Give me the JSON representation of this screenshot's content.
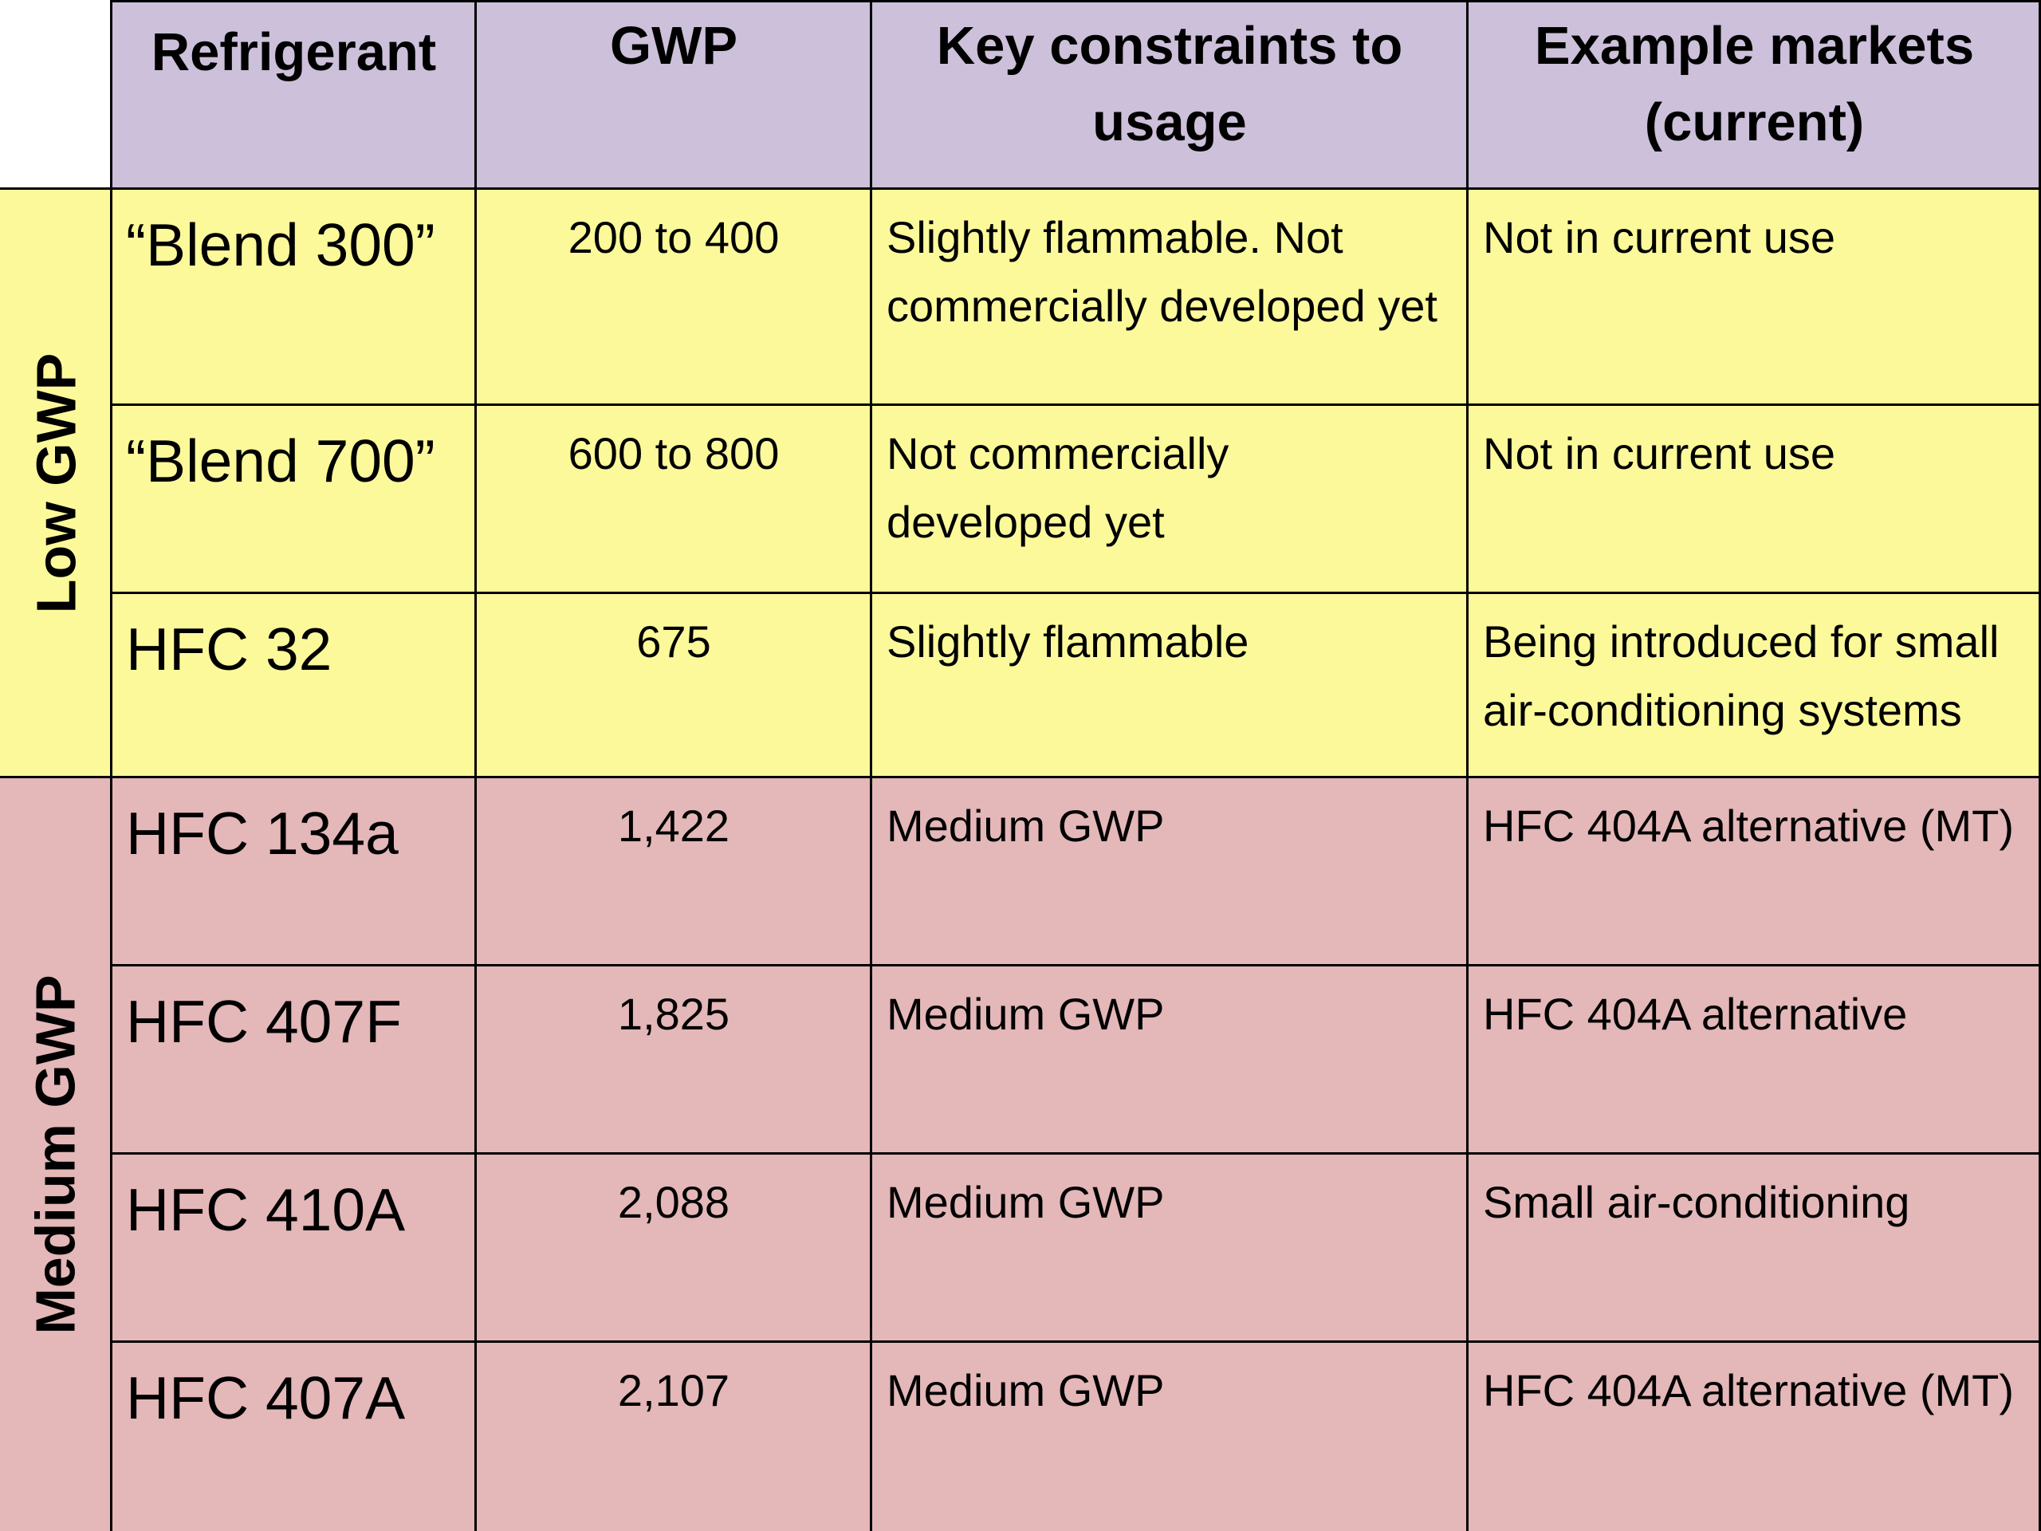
{
  "table": {
    "headers": {
      "refrigerant": "Refrigerant",
      "gwp": "GWP",
      "constraints_line1": "Key constraints to",
      "constraints_line2": "usage",
      "markets_line1": "Example markets",
      "markets_line2": "(current)"
    },
    "groups": {
      "low": "Low GWP",
      "medium": "Medium GWP"
    },
    "rows": [
      {
        "name": "“Blend 300”",
        "gwp": "200 to 400",
        "constraints": [
          "Slightly flammable.  Not",
          "commercially developed yet"
        ],
        "markets": [
          "Not in current use"
        ]
      },
      {
        "name": "“Blend 700”",
        "gwp": "600 to 800",
        "constraints": [
          "Not commercially",
          "developed yet"
        ],
        "markets": [
          "Not in current use"
        ]
      },
      {
        "name": "HFC 32",
        "gwp": "675",
        "constraints": [
          "Slightly flammable"
        ],
        "markets": [
          "Being introduced for small",
          "air-conditioning systems"
        ]
      },
      {
        "name": "HFC 134a",
        "gwp": "1,422",
        "constraints": [
          "Medium GWP"
        ],
        "markets": [
          "HFC 404A alternative (MT)"
        ]
      },
      {
        "name": "HFC 407F",
        "gwp": "1,825",
        "constraints": [
          "Medium GWP"
        ],
        "markets": [
          "HFC 404A alternative"
        ]
      },
      {
        "name": "HFC 410A",
        "gwp": "2,088",
        "constraints": [
          "Medium GWP"
        ],
        "markets": [
          "Small air-conditioning"
        ]
      },
      {
        "name": "HFC 407A",
        "gwp": "2,107",
        "constraints": [
          "Medium GWP"
        ],
        "markets": [
          "HFC 404A alternative (MT)"
        ]
      }
    ],
    "colors": {
      "header": "#ccc0da",
      "low_gwp": "#fcf99a",
      "medium_gwp": "#e4b7b8",
      "border": "#000000"
    }
  }
}
